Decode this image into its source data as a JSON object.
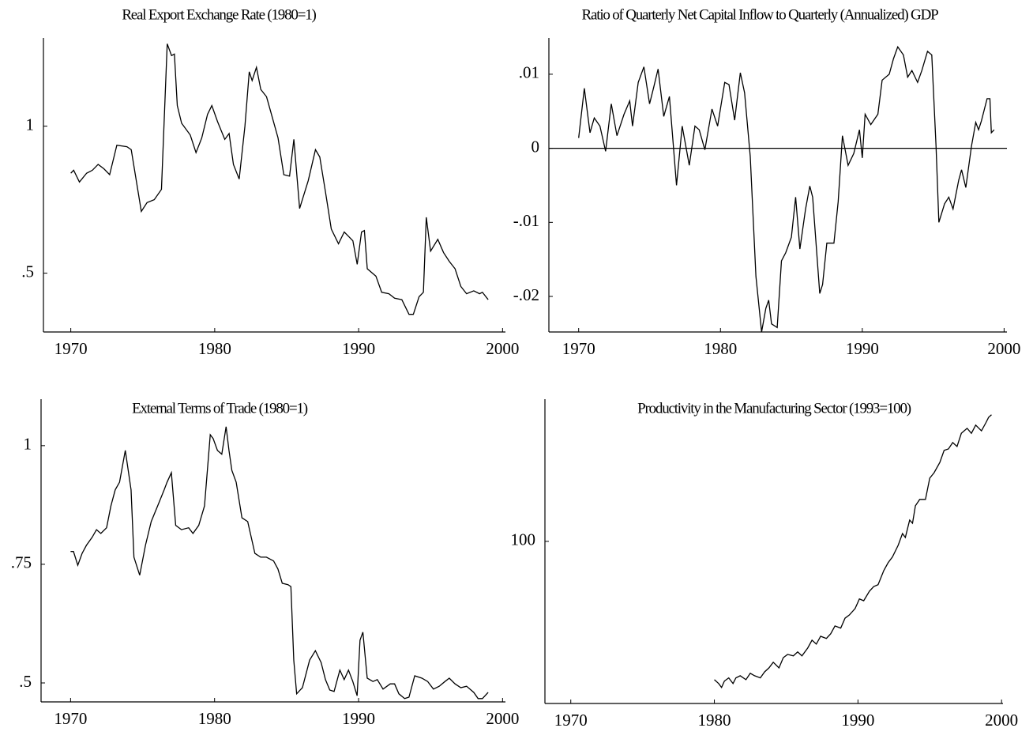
{
  "chart_data": [
    {
      "type": "line",
      "title": "Real Export Exchange Rate (1980=1)",
      "color": "#000000",
      "x": [
        1970,
        1970.2,
        1970.6,
        1971.1,
        1971.5,
        1971.9,
        1972.3,
        1972.7,
        1973.2,
        1973.9,
        1974.2,
        1974.9,
        1975.3,
        1975.8,
        1976.3,
        1976.7,
        1977,
        1977.2,
        1977.4,
        1977.7,
        1978.3,
        1978.7,
        1979.1,
        1979.5,
        1979.8,
        1980.2,
        1980.7,
        1981,
        1981.3,
        1981.7,
        1982.1,
        1982.4,
        1982.6,
        1982.9,
        1983.2,
        1983.6,
        1984,
        1984.4,
        1984.8,
        1985.2,
        1985.5,
        1985.9,
        1986.5,
        1987,
        1987.3,
        1987.7,
        1988.1,
        1988.6,
        1989,
        1989.3,
        1989.6,
        1989.9,
        1990.2,
        1990.4,
        1990.6,
        1991.2,
        1991.6,
        1992.1,
        1992.5,
        1993,
        1993.5,
        1993.8,
        1994.2,
        1994.5,
        1994.7,
        1995,
        1995.5,
        1995.9,
        1996.3,
        1996.7,
        1997.1,
        1997.5,
        1998,
        1998.4,
        1998.6,
        1999
      ],
      "values": [
        0.84,
        0.85,
        0.81,
        0.84,
        0.85,
        0.87,
        0.855,
        0.835,
        0.935,
        0.93,
        0.92,
        0.71,
        0.74,
        0.75,
        0.785,
        1.28,
        1.24,
        1.245,
        1.07,
        1.01,
        0.97,
        0.91,
        0.96,
        1.04,
        1.07,
        1.015,
        0.955,
        0.975,
        0.87,
        0.82,
        1.0,
        1.185,
        1.155,
        1.2,
        1.125,
        1.1,
        1.03,
        0.96,
        0.835,
        0.83,
        0.955,
        0.72,
        0.815,
        0.92,
        0.895,
        0.775,
        0.65,
        0.6,
        0.64,
        0.625,
        0.61,
        0.53,
        0.64,
        0.645,
        0.515,
        0.49,
        0.435,
        0.43,
        0.415,
        0.41,
        0.36,
        0.36,
        0.42,
        0.435,
        0.69,
        0.575,
        0.615,
        0.57,
        0.54,
        0.515,
        0.455,
        0.43,
        0.44,
        0.43,
        0.435,
        0.41
      ],
      "xlim": [
        1968.1,
        2000.2
      ],
      "xticks": [
        1970,
        1980,
        1990,
        2000
      ],
      "ylim": [
        0.3,
        1.3
      ],
      "yticks": [
        {
          "value": 0.5,
          "label": ".5"
        },
        1
      ]
    },
    {
      "type": "line",
      "title": "Ratio of Quarterly Net Capital Inflow to Quarterly (Annualized) GDP",
      "color": "#000000",
      "reference_line": 0,
      "x": [
        1970,
        1970.4,
        1970.8,
        1971.1,
        1971.5,
        1971.9,
        1972.3,
        1972.7,
        1973.2,
        1973.6,
        1973.8,
        1974.2,
        1974.6,
        1975,
        1975.3,
        1975.6,
        1976,
        1976.4,
        1976.9,
        1977.3,
        1977.8,
        1978.2,
        1978.5,
        1978.9,
        1979.4,
        1979.8,
        1980.3,
        1980.6,
        1981,
        1981.4,
        1981.7,
        1982.1,
        1982.5,
        1982.9,
        1983.2,
        1983.4,
        1983.6,
        1984,
        1984.3,
        1984.6,
        1985,
        1985.3,
        1985.6,
        1986,
        1986.3,
        1986.5,
        1987,
        1987.2,
        1987.5,
        1988,
        1988.3,
        1988.6,
        1989,
        1989.4,
        1989.8,
        1990,
        1990.2,
        1990.6,
        1991.1,
        1991.4,
        1991.9,
        1992.2,
        1992.5,
        1992.9,
        1993.2,
        1993.5,
        1993.9,
        1994.2,
        1994.6,
        1994.9,
        1995.2,
        1995.4,
        1995.8,
        1996.1,
        1996.4,
        1996.8,
        1997,
        1997.3,
        1997.7,
        1998,
        1998.2,
        1998.4,
        1998.8,
        1999,
        1999.1,
        1999.3
      ],
      "values": [
        0.0014,
        0.0081,
        0.0021,
        0.0041,
        0.003,
        -0.0004,
        0.006,
        0.0017,
        0.0046,
        0.0064,
        0.003,
        0.0089,
        0.011,
        0.006,
        0.0083,
        0.0107,
        0.0043,
        0.007,
        -0.005,
        0.003,
        -0.0023,
        0.003,
        0.0025,
        -0.0002,
        0.0053,
        0.003,
        0.0089,
        0.0086,
        0.0038,
        0.0102,
        0.0075,
        -0.0011,
        -0.0173,
        -0.0248,
        -0.0216,
        -0.0205,
        -0.0237,
        -0.0242,
        -0.0152,
        -0.0141,
        -0.012,
        -0.0066,
        -0.0136,
        -0.0082,
        -0.0051,
        -0.0066,
        -0.0196,
        -0.0184,
        -0.0128,
        -0.0128,
        -0.0072,
        0.0017,
        -0.0023,
        -0.0007,
        0.0025,
        -0.0013,
        0.0046,
        0.0032,
        0.0046,
        0.0092,
        0.01,
        0.0121,
        0.0137,
        0.0126,
        0.0096,
        0.0105,
        0.0089,
        0.0105,
        0.0131,
        0.0126,
        0.0003,
        -0.01,
        -0.0075,
        -0.0066,
        -0.0082,
        -0.0043,
        -0.0029,
        -0.0053,
        0.0003,
        0.0035,
        0.0025,
        0.0037,
        0.0067,
        0.0067,
        0.0021,
        0.0025
      ],
      "xlim": [
        1967.9,
        2000.2
      ],
      "xticks": [
        1970,
        1980,
        1990,
        2000
      ],
      "ylim": [
        -0.0248,
        0.0149
      ],
      "yticks": [
        {
          "value": -0.02,
          "label": "-.02"
        },
        {
          "value": -0.01,
          "label": "-.01"
        },
        0,
        {
          "value": 0.01,
          "label": ".01"
        }
      ]
    },
    {
      "type": "line",
      "title": "External Terms of Trade (1980=1)",
      "color": "#000000",
      "x": [
        1970,
        1970.2,
        1970.5,
        1970.8,
        1971.1,
        1971.5,
        1971.8,
        1972.1,
        1972.5,
        1972.8,
        1973.1,
        1973.4,
        1973.8,
        1974.2,
        1974.4,
        1974.8,
        1975.2,
        1975.6,
        1976.1,
        1976.5,
        1976.7,
        1977,
        1977.3,
        1977.7,
        1978.2,
        1978.5,
        1978.9,
        1979.3,
        1979.7,
        1979.9,
        1980.2,
        1980.5,
        1980.8,
        1981,
        1981.2,
        1981.5,
        1981.9,
        1982.3,
        1982.8,
        1983.2,
        1983.6,
        1984.1,
        1984.4,
        1984.7,
        1985.1,
        1985.3,
        1985.5,
        1985.7,
        1986.1,
        1986.6,
        1987,
        1987.4,
        1987.7,
        1988,
        1988.3,
        1988.7,
        1989,
        1989.3,
        1989.6,
        1989.9,
        1990.1,
        1990.3,
        1990.6,
        1991,
        1991.3,
        1991.7,
        1992.2,
        1992.5,
        1992.8,
        1993.2,
        1993.5,
        1993.9,
        1994.4,
        1994.8,
        1995.2,
        1995.6,
        1996,
        1996.3,
        1996.7,
        1997.1,
        1997.5,
        1998,
        1998.3,
        1998.6,
        1999
      ],
      "values": [
        0.777,
        0.777,
        0.748,
        0.773,
        0.79,
        0.807,
        0.823,
        0.815,
        0.827,
        0.873,
        0.907,
        0.923,
        0.99,
        0.907,
        0.765,
        0.727,
        0.79,
        0.84,
        0.877,
        0.907,
        0.923,
        0.943,
        0.832,
        0.823,
        0.827,
        0.815,
        0.832,
        0.873,
        1.023,
        1.015,
        0.99,
        0.982,
        1.04,
        0.99,
        0.948,
        0.923,
        0.848,
        0.84,
        0.773,
        0.765,
        0.765,
        0.757,
        0.74,
        0.71,
        0.707,
        0.703,
        0.548,
        0.477,
        0.49,
        0.548,
        0.568,
        0.543,
        0.507,
        0.485,
        0.482,
        0.527,
        0.507,
        0.527,
        0.503,
        0.473,
        0.59,
        0.607,
        0.51,
        0.503,
        0.507,
        0.487,
        0.498,
        0.498,
        0.477,
        0.467,
        0.47,
        0.515,
        0.51,
        0.503,
        0.487,
        0.493,
        0.503,
        0.51,
        0.498,
        0.49,
        0.493,
        0.48,
        0.467,
        0.467,
        0.48
      ],
      "xlim": [
        1967.95,
        2000.2
      ],
      "xticks": [
        1970,
        1980,
        1990,
        2000
      ],
      "ylim": [
        0.46,
        1.098
      ],
      "yticks": [
        {
          "value": 0.5,
          "label": ".5"
        },
        {
          "value": 0.75,
          "label": ".75"
        },
        1
      ]
    },
    {
      "type": "line",
      "title": "Productivity in the Manufacturing Sector (1993=100)",
      "color": "#000000",
      "x": [
        1980,
        1980.3,
        1980.5,
        1980.7,
        1981,
        1981.3,
        1981.5,
        1981.8,
        1982.2,
        1982.5,
        1982.8,
        1983.2,
        1983.5,
        1983.8,
        1984.1,
        1984.5,
        1984.8,
        1985.1,
        1985.5,
        1985.8,
        1986.1,
        1986.5,
        1986.8,
        1987.1,
        1987.4,
        1987.8,
        1988.1,
        1988.4,
        1988.8,
        1989.1,
        1989.4,
        1989.8,
        1990.1,
        1990.4,
        1990.8,
        1991.1,
        1991.4,
        1991.8,
        1992.1,
        1992.4,
        1992.8,
        1993.1,
        1993.3,
        1993.6,
        1993.8,
        1994,
        1994.3,
        1994.7,
        1995,
        1995.3,
        1995.7,
        1996,
        1996.3,
        1996.6,
        1996.9,
        1997.2,
        1997.6,
        1997.9,
        1998.2,
        1998.6,
        1998.9,
        1999.1,
        1999.3
      ],
      "values": [
        61.1,
        60,
        58.9,
        60.7,
        61.6,
        60,
        61.6,
        62.2,
        61.1,
        62.9,
        62.2,
        61.6,
        63.3,
        64.4,
        66,
        64.4,
        67.3,
        68.2,
        67.8,
        68.9,
        67.8,
        70,
        72.2,
        71.1,
        73.3,
        72.7,
        74,
        76.2,
        75.6,
        78.4,
        79.3,
        81.1,
        83.8,
        83.3,
        86,
        87.3,
        87.8,
        91.8,
        94,
        95.6,
        98.9,
        102.2,
        101.1,
        106,
        105.1,
        110,
        111.8,
        111.8,
        117.8,
        119.3,
        122.2,
        125.6,
        126,
        127.8,
        126.7,
        130.4,
        131.8,
        130.4,
        132.7,
        131.1,
        133.3,
        134.9,
        135.6
      ],
      "xlim": [
        1968.2,
        2000.1
      ],
      "xticks": [
        1970,
        1980,
        1990,
        2000
      ],
      "ylim": [
        54.4,
        140
      ],
      "yticks": [
        100
      ]
    }
  ]
}
